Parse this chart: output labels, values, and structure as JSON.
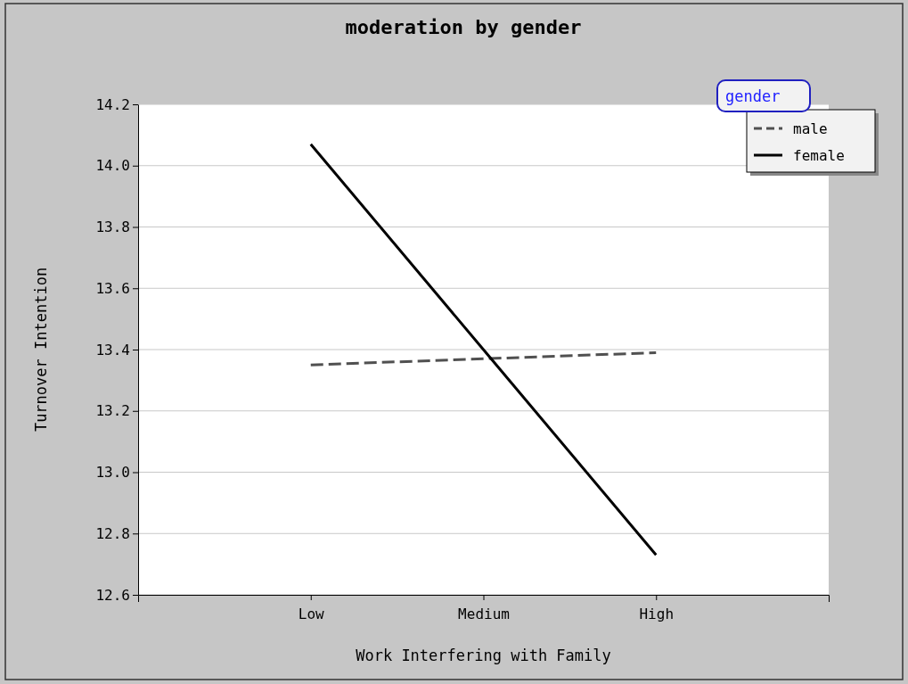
{
  "chart_data": {
    "type": "line",
    "title": "moderation by gender",
    "xlabel": "Work Interfering with Family",
    "ylabel": "Turnover Intention",
    "categories": [
      "Low",
      "Medium",
      "High"
    ],
    "series": [
      {
        "name": "male",
        "color": "#505050",
        "values": [
          13.35,
          13.37,
          13.39
        ],
        "line_style": "dashed"
      },
      {
        "name": "female",
        "color": "#000000",
        "values": [
          14.07,
          13.4,
          12.73
        ],
        "line_style": "solid"
      }
    ],
    "ylim": [
      12.6,
      14.2
    ],
    "yticks": [
      {
        "value": 12.6,
        "label": "12.6"
      },
      {
        "value": 12.8,
        "label": "12.8"
      },
      {
        "value": 13.0,
        "label": "13.0"
      },
      {
        "value": 13.2,
        "label": "13.2"
      },
      {
        "value": 13.4,
        "label": "13.4"
      },
      {
        "value": 13.6,
        "label": "13.6"
      },
      {
        "value": 13.8,
        "label": "13.8"
      },
      {
        "value": 14.0,
        "label": "14.0"
      },
      {
        "value": 14.2,
        "label": "14.2"
      }
    ],
    "grid": "y",
    "legend": "top right",
    "legend_title": "gender",
    "marker": "none"
  }
}
